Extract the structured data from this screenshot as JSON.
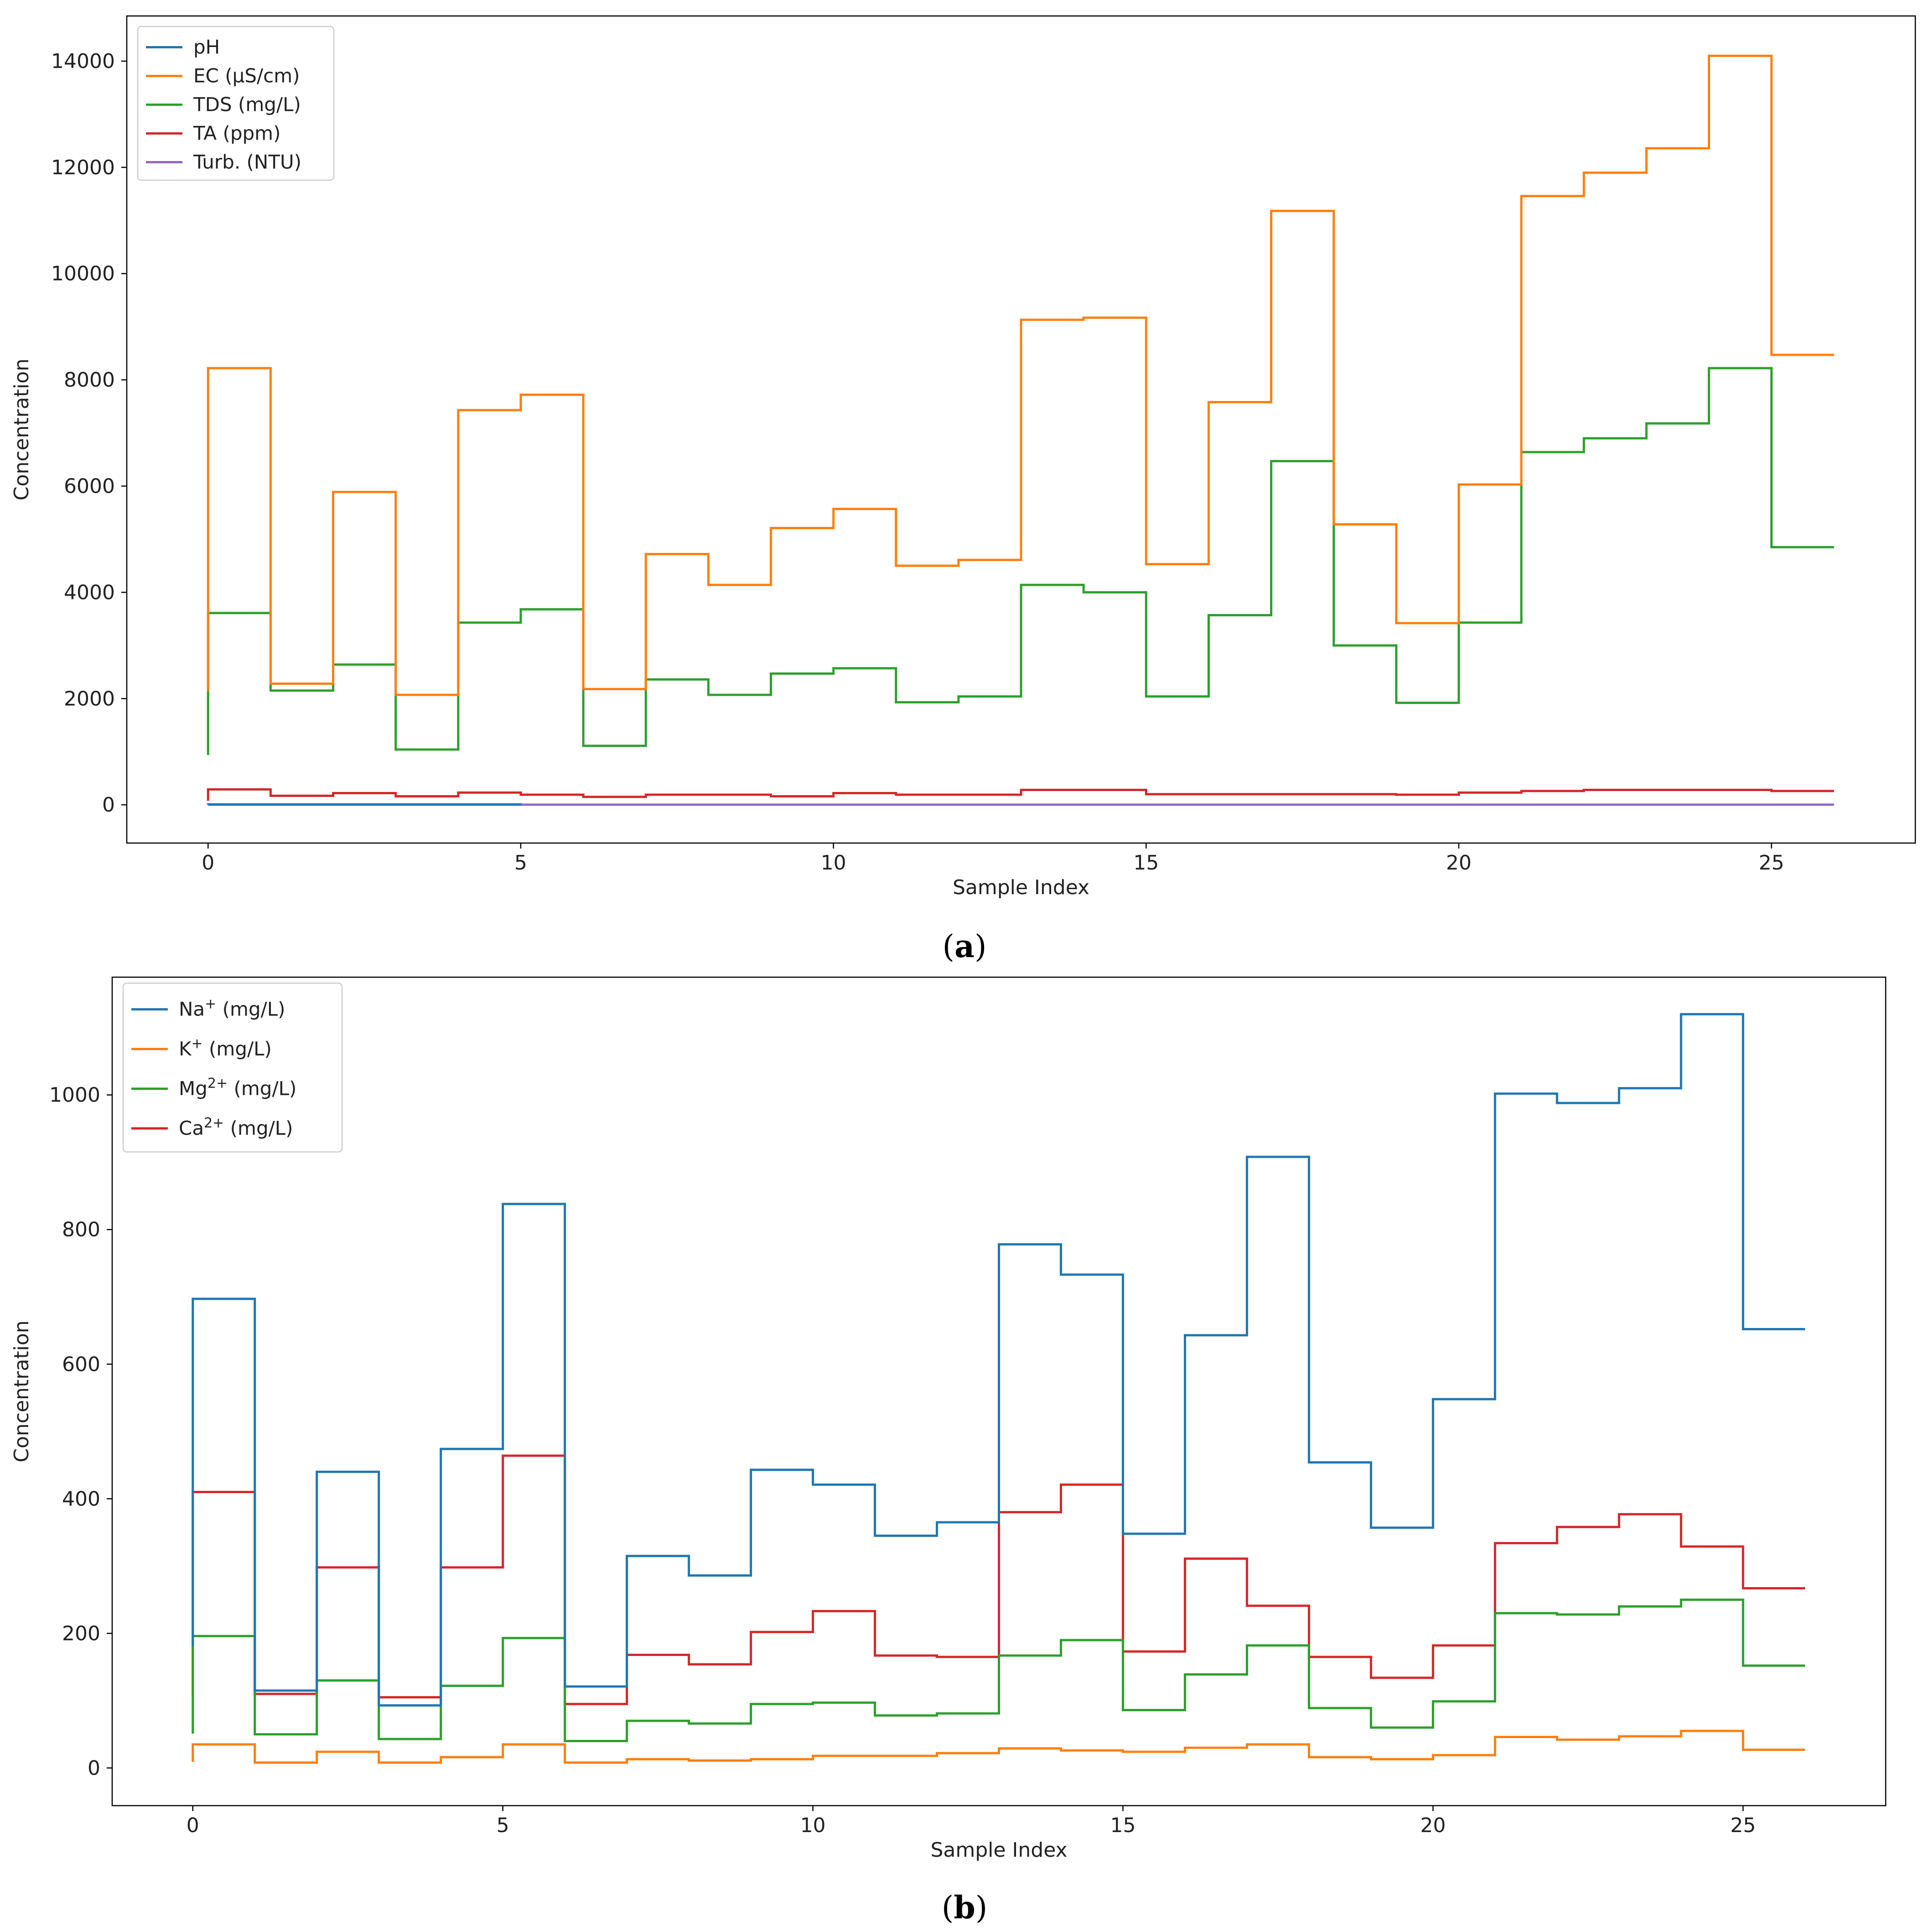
{
  "chart_data": [
    {
      "type": "line",
      "step": "post",
      "caption_letter": "a",
      "xlabel": "Sample Index",
      "ylabel": "Concentration",
      "xlim": [
        -1.3,
        27.3
      ],
      "ylim": [
        -720,
        14850
      ],
      "xticks": [
        0,
        5,
        10,
        15,
        20,
        25
      ],
      "yticks": [
        0,
        2000,
        4000,
        6000,
        8000,
        10000,
        12000,
        14000
      ],
      "legend_position": "top-left",
      "x": [
        0,
        1,
        2,
        3,
        4,
        5,
        6,
        7,
        8,
        9,
        10,
        11,
        12,
        13,
        14,
        15,
        16,
        17,
        18,
        19,
        20,
        21,
        22,
        23,
        24,
        25,
        26
      ],
      "series": [
        {
          "name": "pH",
          "color": "#1f77b4",
          "x": [
            0,
            1,
            2,
            3,
            4,
            5
          ],
          "values": [
            7.6,
            7.8,
            7.5,
            7.9,
            7.7,
            7.6
          ]
        },
        {
          "name": "EC (μS/cm)",
          "color": "#ff7f0e",
          "values": [
            8220,
            2280,
            5890,
            2070,
            7430,
            7720,
            2180,
            4720,
            4140,
            5210,
            5570,
            4500,
            4610,
            9130,
            9170,
            4530,
            7580,
            11180,
            5280,
            3420,
            6030,
            11460,
            11900,
            12360,
            14100,
            8470,
            8470
          ]
        },
        {
          "name": "TDS (mg/L)",
          "color": "#2ca02c",
          "values": [
            3610,
            2150,
            2640,
            1040,
            3430,
            3680,
            1110,
            2360,
            2070,
            2470,
            2570,
            1930,
            2040,
            4140,
            4000,
            2040,
            3570,
            6470,
            3000,
            1920,
            3430,
            6640,
            6900,
            7180,
            8220,
            4850,
            4850
          ]
        },
        {
          "name": "TA (ppm)",
          "color": "#d62728",
          "values": [
            290,
            170,
            220,
            160,
            230,
            190,
            150,
            190,
            190,
            160,
            220,
            190,
            190,
            280,
            280,
            200,
            200,
            200,
            200,
            190,
            230,
            260,
            280,
            280,
            280,
            260,
            260
          ]
        },
        {
          "name": "Turb. (NTU)",
          "color": "#9467bd",
          "values": [
            3,
            3,
            3,
            3,
            3,
            3,
            3,
            3,
            3,
            3,
            3,
            3,
            3,
            3,
            3,
            3,
            3,
            3,
            3,
            3,
            3,
            3,
            3,
            3,
            3,
            3,
            3
          ]
        }
      ]
    },
    {
      "type": "line",
      "step": "post",
      "caption_letter": "b",
      "xlabel": "Sample Index",
      "ylabel": "Concentration",
      "xlim": [
        -1.3,
        27.3
      ],
      "ylim": [
        -56,
        1175
      ],
      "xticks": [
        0,
        5,
        10,
        15,
        20,
        25
      ],
      "yticks": [
        0,
        200,
        400,
        600,
        800,
        1000
      ],
      "legend_position": "top-left",
      "x": [
        0,
        1,
        2,
        3,
        4,
        5,
        6,
        7,
        8,
        9,
        10,
        11,
        12,
        13,
        14,
        15,
        16,
        17,
        18,
        19,
        20,
        21,
        22,
        23,
        24,
        25,
        26
      ],
      "series": [
        {
          "name": "Na",
          "sup": "+",
          "unit": "(mg/L)",
          "color": "#1f77b4",
          "values": [
            697,
            115,
            440,
            93,
            474,
            838,
            121,
            315,
            286,
            443,
            421,
            345,
            365,
            778,
            733,
            348,
            643,
            908,
            454,
            357,
            548,
            1002,
            988,
            1010,
            1120,
            652,
            652
          ]
        },
        {
          "name": "K",
          "sup": "+",
          "unit": "(mg/L)",
          "color": "#ff7f0e",
          "values": [
            35,
            8,
            24,
            8,
            16,
            35,
            8,
            13,
            11,
            13,
            18,
            18,
            22,
            29,
            26,
            24,
            30,
            35,
            16,
            13,
            19,
            46,
            42,
            47,
            55,
            27,
            27
          ]
        },
        {
          "name": "Mg",
          "sup": "2+",
          "unit": "(mg/L)",
          "color": "#2ca02c",
          "values": [
            196,
            50,
            130,
            43,
            122,
            193,
            40,
            70,
            66,
            95,
            97,
            78,
            81,
            167,
            190,
            86,
            139,
            182,
            89,
            60,
            99,
            230,
            228,
            240,
            250,
            152,
            152
          ]
        },
        {
          "name": "Ca",
          "sup": "2+",
          "unit": "(mg/L)",
          "color": "#d62728",
          "values": [
            410,
            110,
            298,
            105,
            298,
            464,
            95,
            168,
            154,
            202,
            233,
            167,
            165,
            380,
            421,
            173,
            311,
            241,
            165,
            134,
            182,
            334,
            358,
            377,
            329,
            267,
            267
          ]
        }
      ]
    }
  ]
}
